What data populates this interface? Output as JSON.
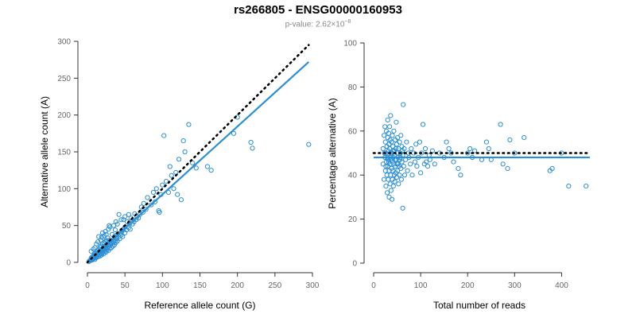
{
  "title": "rs266805 - ENSG00000160953",
  "subtitle": {
    "prefix": "p-value: 2.62×10",
    "exponent": "−8"
  },
  "colors": {
    "points": "#2a8fd6",
    "fit_line": "#2a8fd6",
    "reference_line": "#000000",
    "axis": "#333333",
    "tick_text": "#666666"
  },
  "chart_data": [
    {
      "type": "scatter",
      "xlabel": "Reference allele count (G)",
      "ylabel": "Alternative allele count (A)",
      "xlim": [
        0,
        300
      ],
      "ylim": [
        0,
        300
      ],
      "xticks": [
        0,
        50,
        100,
        150,
        200,
        250,
        300
      ],
      "yticks": [
        0,
        50,
        100,
        150,
        200,
        250,
        300
      ],
      "grid": false,
      "lines": [
        {
          "style": "solid",
          "x": [
            0,
            295
          ],
          "y": [
            0,
            272
          ]
        },
        {
          "style": "dotted",
          "x": [
            0,
            295
          ],
          "y": [
            0,
            295
          ]
        }
      ],
      "points": [
        [
          2,
          1
        ],
        [
          3,
          2
        ],
        [
          4,
          3
        ],
        [
          5,
          4
        ],
        [
          5,
          6
        ],
        [
          6,
          3
        ],
        [
          6,
          5
        ],
        [
          7,
          4
        ],
        [
          7,
          8
        ],
        [
          8,
          5
        ],
        [
          8,
          7
        ],
        [
          9,
          6
        ],
        [
          9,
          10
        ],
        [
          10,
          4
        ],
        [
          10,
          8
        ],
        [
          10,
          12
        ],
        [
          11,
          6
        ],
        [
          11,
          10
        ],
        [
          12,
          9
        ],
        [
          12,
          14
        ],
        [
          13,
          7
        ],
        [
          13,
          12
        ],
        [
          14,
          10
        ],
        [
          14,
          16
        ],
        [
          15,
          8
        ],
        [
          15,
          13
        ],
        [
          15,
          18
        ],
        [
          16,
          11
        ],
        [
          16,
          15
        ],
        [
          17,
          9
        ],
        [
          17,
          14
        ],
        [
          17,
          20
        ],
        [
          18,
          12
        ],
        [
          18,
          17
        ],
        [
          18,
          22
        ],
        [
          19,
          10
        ],
        [
          19,
          15
        ],
        [
          20,
          13
        ],
        [
          20,
          18
        ],
        [
          20,
          25
        ],
        [
          21,
          16
        ],
        [
          21,
          20
        ],
        [
          22,
          12
        ],
        [
          22,
          19
        ],
        [
          22,
          27
        ],
        [
          23,
          15
        ],
        [
          23,
          22
        ],
        [
          24,
          18
        ],
        [
          24,
          28
        ],
        [
          25,
          14
        ],
        [
          25,
          21
        ],
        [
          25,
          30
        ],
        [
          26,
          17
        ],
        [
          26,
          24
        ],
        [
          27,
          20
        ],
        [
          27,
          33
        ],
        [
          28,
          16
        ],
        [
          28,
          25
        ],
        [
          29,
          22
        ],
        [
          29,
          30
        ],
        [
          30,
          19
        ],
        [
          30,
          27
        ],
        [
          31,
          24
        ],
        [
          32,
          20
        ],
        [
          32,
          29
        ],
        [
          33,
          26
        ],
        [
          34,
          22
        ],
        [
          34,
          31
        ],
        [
          35,
          28
        ],
        [
          36,
          24
        ],
        [
          36,
          35
        ],
        [
          37,
          30
        ],
        [
          38,
          27
        ],
        [
          39,
          33
        ],
        [
          40,
          29
        ],
        [
          40,
          38
        ],
        [
          42,
          35
        ],
        [
          43,
          32
        ],
        [
          44,
          40
        ],
        [
          45,
          37
        ],
        [
          46,
          42
        ],
        [
          47,
          35
        ],
        [
          48,
          45
        ],
        [
          50,
          40
        ],
        [
          50,
          48
        ],
        [
          52,
          44
        ],
        [
          53,
          55
        ],
        [
          55,
          47
        ],
        [
          56,
          52
        ],
        [
          57,
          45
        ],
        [
          58,
          60
        ],
        [
          60,
          52
        ],
        [
          60,
          57
        ],
        [
          62,
          55
        ],
        [
          63,
          66
        ],
        [
          65,
          58
        ],
        [
          66,
          62
        ],
        [
          68,
          60
        ],
        [
          70,
          65
        ],
        [
          72,
          75
        ],
        [
          74,
          68
        ],
        [
          15,
          35
        ],
        [
          20,
          40
        ],
        [
          25,
          38
        ],
        [
          28,
          45
        ],
        [
          35,
          50
        ],
        [
          38,
          55
        ],
        [
          45,
          58
        ],
        [
          50,
          62
        ],
        [
          55,
          65
        ],
        [
          42,
          65
        ],
        [
          30,
          48
        ],
        [
          18,
          30
        ],
        [
          22,
          36
        ],
        [
          12,
          25
        ],
        [
          8,
          18
        ],
        [
          40,
          52
        ],
        [
          48,
          58
        ],
        [
          75,
          80
        ],
        [
          78,
          72
        ],
        [
          80,
          88
        ],
        [
          85,
          78
        ],
        [
          88,
          95
        ],
        [
          90,
          82
        ],
        [
          92,
          100
        ],
        [
          95,
          70
        ],
        [
          96,
          68
        ],
        [
          98,
          92
        ],
        [
          100,
          105
        ],
        [
          102,
          172
        ],
        [
          105,
          110
        ],
        [
          108,
          95
        ],
        [
          110,
          130
        ],
        [
          112,
          118
        ],
        [
          115,
          100
        ],
        [
          118,
          122
        ],
        [
          120,
          92
        ],
        [
          122,
          140
        ],
        [
          125,
          85
        ],
        [
          128,
          165
        ],
        [
          130,
          150
        ],
        [
          135,
          187
        ],
        [
          140,
          135
        ],
        [
          145,
          128
        ],
        [
          160,
          130
        ],
        [
          165,
          125
        ],
        [
          195,
          175
        ],
        [
          200,
          197
        ],
        [
          218,
          163
        ],
        [
          220,
          155
        ],
        [
          295,
          160
        ],
        [
          5,
          15
        ],
        [
          10,
          20
        ],
        [
          14,
          28
        ],
        [
          19,
          34
        ],
        [
          24,
          42
        ],
        [
          29,
          50
        ],
        [
          33,
          38
        ],
        [
          37,
          44
        ]
      ]
    },
    {
      "type": "scatter",
      "xlabel": "Total number of reads",
      "ylabel": "Percentage alternative (A)",
      "xlim": [
        0,
        450
      ],
      "ylim": [
        0,
        100
      ],
      "xticks": [
        0,
        100,
        200,
        300,
        400
      ],
      "yticks": [
        0,
        20,
        40,
        60,
        80,
        100
      ],
      "grid": false,
      "lines": [
        {
          "style": "solid",
          "x": [
            0,
            460
          ],
          "y": [
            48,
            48
          ]
        },
        {
          "style": "dotted",
          "x": [
            0,
            460
          ],
          "y": [
            50,
            50
          ]
        }
      ],
      "points": [
        [
          20,
          45
        ],
        [
          20,
          52
        ],
        [
          22,
          38
        ],
        [
          22,
          58
        ],
        [
          24,
          48
        ],
        [
          24,
          62
        ],
        [
          25,
          42
        ],
        [
          25,
          55
        ],
        [
          26,
          35
        ],
        [
          26,
          50
        ],
        [
          27,
          46
        ],
        [
          27,
          60
        ],
        [
          28,
          40
        ],
        [
          28,
          53
        ],
        [
          29,
          32
        ],
        [
          29,
          48
        ],
        [
          30,
          44
        ],
        [
          30,
          57
        ],
        [
          30,
          65
        ],
        [
          31,
          38
        ],
        [
          31,
          51
        ],
        [
          32,
          46
        ],
        [
          32,
          59
        ],
        [
          33,
          30
        ],
        [
          33,
          42
        ],
        [
          33,
          54
        ],
        [
          34,
          48
        ],
        [
          34,
          62
        ],
        [
          35,
          36
        ],
        [
          35,
          45
        ],
        [
          35,
          56
        ],
        [
          36,
          40
        ],
        [
          36,
          50
        ],
        [
          36,
          67
        ],
        [
          37,
          33
        ],
        [
          37,
          47
        ],
        [
          38,
          43
        ],
        [
          38,
          55
        ],
        [
          39,
          29
        ],
        [
          39,
          50
        ],
        [
          40,
          38
        ],
        [
          40,
          46
        ],
        [
          40,
          58
        ],
        [
          41,
          42
        ],
        [
          41,
          53
        ],
        [
          42,
          35
        ],
        [
          42,
          48
        ],
        [
          43,
          45
        ],
        [
          43,
          60
        ],
        [
          44,
          40
        ],
        [
          44,
          51
        ],
        [
          45,
          37
        ],
        [
          45,
          49
        ],
        [
          46,
          44
        ],
        [
          46,
          56
        ],
        [
          47,
          41
        ],
        [
          47,
          52
        ],
        [
          48,
          47
        ],
        [
          48,
          64
        ],
        [
          49,
          39
        ],
        [
          49,
          54
        ],
        [
          50,
          45
        ],
        [
          50,
          50
        ],
        [
          51,
          42
        ],
        [
          51,
          57
        ],
        [
          52,
          48
        ],
        [
          53,
          36
        ],
        [
          53,
          52
        ],
        [
          54,
          44
        ],
        [
          55,
          40
        ],
        [
          55,
          55
        ],
        [
          56,
          47
        ],
        [
          57,
          50
        ],
        [
          58,
          43
        ],
        [
          58,
          58
        ],
        [
          59,
          38
        ],
        [
          60,
          46
        ],
        [
          60,
          53
        ],
        [
          62,
          25
        ],
        [
          62,
          49
        ],
        [
          63,
          72
        ],
        [
          64,
          44
        ],
        [
          65,
          52
        ],
        [
          66,
          40
        ],
        [
          68,
          47
        ],
        [
          70,
          55
        ],
        [
          72,
          42
        ],
        [
          74,
          50
        ],
        [
          75,
          48
        ],
        [
          78,
          45
        ],
        [
          80,
          52
        ],
        [
          82,
          40
        ],
        [
          85,
          50
        ],
        [
          88,
          46
        ],
        [
          90,
          54
        ],
        [
          92,
          44
        ],
        [
          95,
          48
        ],
        [
          98,
          55
        ],
        [
          100,
          41
        ],
        [
          102,
          50
        ],
        [
          105,
          63
        ],
        [
          108,
          45
        ],
        [
          110,
          52
        ],
        [
          112,
          46
        ],
        [
          115,
          44
        ],
        [
          118,
          49
        ],
        [
          120,
          47
        ],
        [
          125,
          51
        ],
        [
          130,
          45
        ],
        [
          140,
          50
        ],
        [
          150,
          48
        ],
        [
          155,
          55
        ],
        [
          160,
          52
        ],
        [
          165,
          50
        ],
        [
          170,
          46
        ],
        [
          180,
          43
        ],
        [
          185,
          40
        ],
        [
          200,
          50
        ],
        [
          205,
          52
        ],
        [
          210,
          48
        ],
        [
          215,
          51
        ],
        [
          230,
          47
        ],
        [
          240,
          55
        ],
        [
          245,
          52
        ],
        [
          250,
          47
        ],
        [
          270,
          63
        ],
        [
          275,
          45
        ],
        [
          285,
          43
        ],
        [
          290,
          56
        ],
        [
          300,
          50
        ],
        [
          320,
          57
        ],
        [
          375,
          42
        ],
        [
          380,
          43
        ],
        [
          400,
          50
        ],
        [
          415,
          35
        ],
        [
          452,
          35
        ],
        [
          23,
          50
        ],
        [
          26,
          44
        ],
        [
          31,
          47
        ],
        [
          34,
          52
        ],
        [
          37,
          49
        ],
        [
          42,
          51
        ],
        [
          46,
          47
        ],
        [
          52,
          45
        ],
        [
          57,
          48
        ],
        [
          61,
          51
        ]
      ]
    }
  ]
}
